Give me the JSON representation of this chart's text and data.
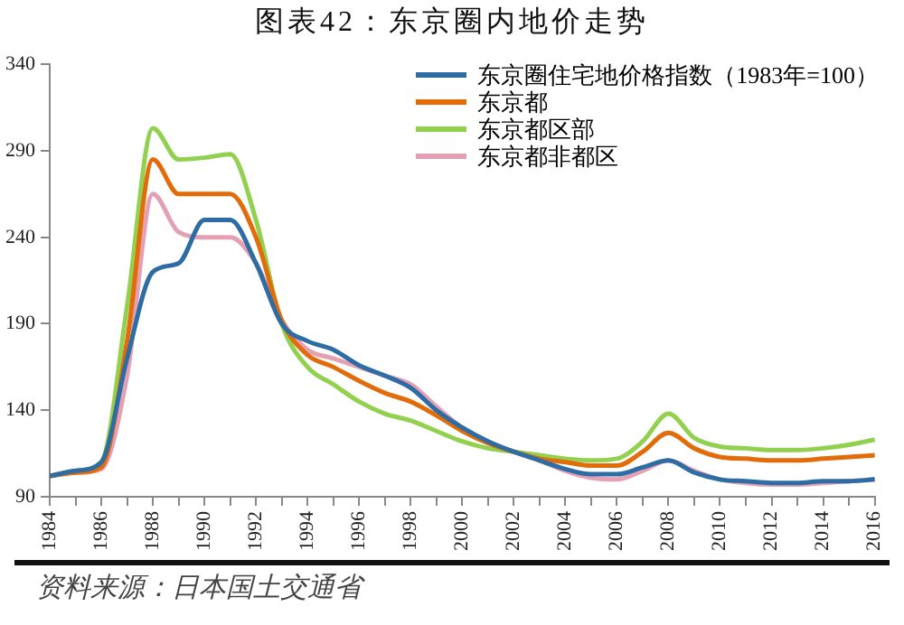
{
  "chart_data": {
    "type": "line",
    "title": "图表42：东京圈内地价走势",
    "categories": [
      "1984",
      null,
      "1986",
      null,
      "1988",
      null,
      "1990",
      null,
      "1992",
      null,
      "1994",
      null,
      "1996",
      null,
      "1998",
      null,
      "2000",
      null,
      "2002",
      null,
      "2004",
      null,
      "2006",
      null,
      "2008",
      null,
      "2010",
      null,
      "2012",
      null,
      "2014",
      null,
      "2016"
    ],
    "series": [
      {
        "name": "东京圈住宅地价格指数（1983年=100）",
        "color": "#2e6da4",
        "values": [
          102,
          105,
          110,
          170,
          220,
          225,
          250,
          250,
          225,
          190,
          180,
          175,
          166,
          160,
          153,
          140,
          130,
          122,
          116,
          111,
          106,
          103,
          103,
          107,
          111,
          104,
          100,
          99,
          98,
          98,
          99,
          99,
          100
        ]
      },
      {
        "name": "东京都",
        "color": "#e36c0a",
        "values": [
          102,
          104,
          107,
          180,
          285,
          265,
          265,
          265,
          240,
          192,
          172,
          165,
          157,
          150,
          145,
          137,
          128,
          121,
          116,
          112,
          110,
          108,
          108,
          116,
          127,
          118,
          113,
          112,
          111,
          111,
          112,
          113,
          114
        ]
      },
      {
        "name": "东京都区部",
        "color": "#92d050",
        "values": [
          102,
          105,
          110,
          200,
          303,
          285,
          286,
          288,
          250,
          190,
          165,
          155,
          145,
          138,
          134,
          128,
          122,
          118,
          116,
          114,
          112,
          111,
          112,
          122,
          138,
          124,
          119,
          118,
          117,
          117,
          118,
          120,
          123
        ]
      },
      {
        "name": "东京都非都区",
        "color": "#e6a0b4",
        "values": [
          102,
          104,
          106,
          160,
          265,
          243,
          240,
          240,
          225,
          192,
          175,
          170,
          165,
          160,
          155,
          142,
          130,
          122,
          116,
          111,
          105,
          101,
          100,
          105,
          111,
          105,
          100,
          98,
          97,
          97,
          98,
          99,
          100
        ]
      }
    ],
    "ylim": [
      90,
      340
    ],
    "yticks": [
      90,
      140,
      190,
      240,
      290,
      340
    ],
    "grid": false,
    "legend": "top right",
    "marker": "none",
    "line_style": "solid",
    "annotations": [
      "资料来源：日本国土交通省"
    ]
  }
}
